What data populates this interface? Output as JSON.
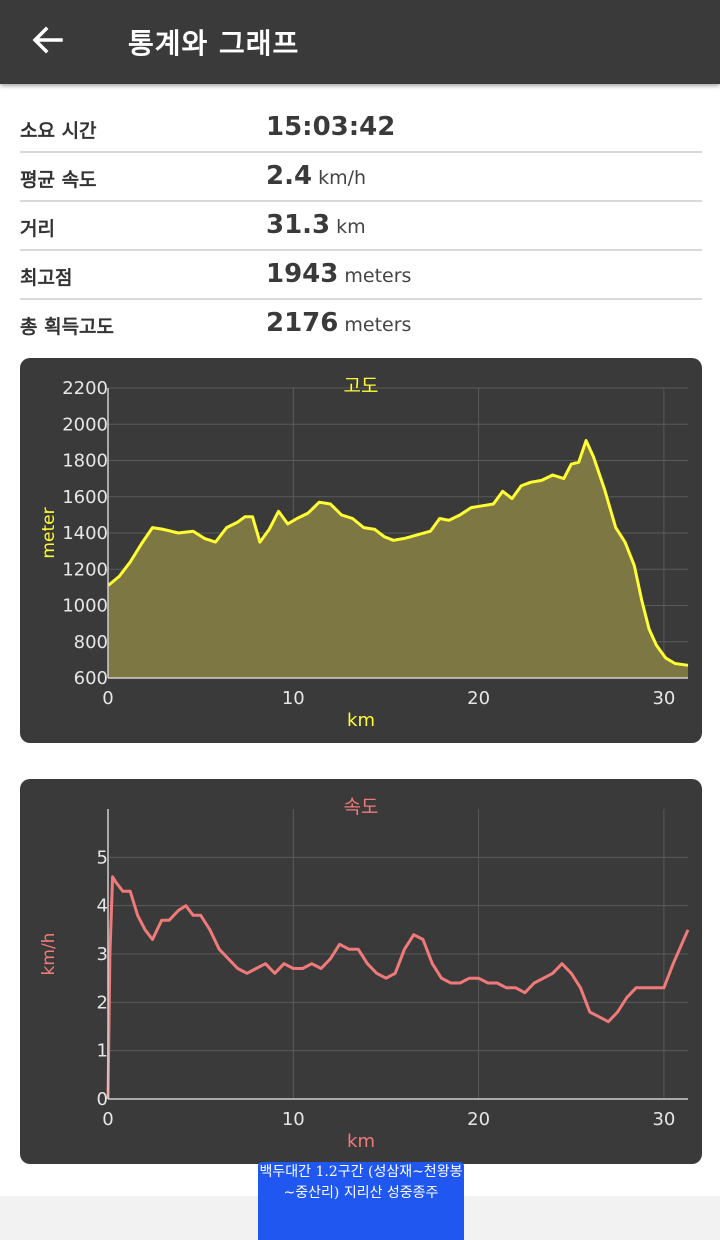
{
  "header": {
    "title": "통계와 그래프",
    "back_icon": "arrow-left-icon"
  },
  "stats": [
    {
      "label": "소요 시간",
      "value": "15:03:42",
      "unit": ""
    },
    {
      "label": "평균 속도",
      "value": "2.4",
      "unit": "km/h"
    },
    {
      "label": "거리",
      "value": "31.3",
      "unit": "km"
    },
    {
      "label": "최고점",
      "value": "1943",
      "unit": "meters"
    },
    {
      "label": "총 획득고도",
      "value": "2176",
      "unit": "meters"
    }
  ],
  "chart_data": [
    {
      "type": "area",
      "title": "고도",
      "xlabel": "km",
      "ylabel": "meter",
      "xlim": [
        0,
        31.3
      ],
      "ylim": [
        600,
        2200
      ],
      "xticks": [
        "0",
        "10",
        "20",
        "30"
      ],
      "yticks": [
        "600",
        "800",
        "1000",
        "1200",
        "1400",
        "1600",
        "1800",
        "2000",
        "2200"
      ],
      "grid": true,
      "color": "#ffff33",
      "fill": "#7d7843",
      "x": [
        0,
        0.6,
        1.2,
        1.8,
        2.4,
        3.0,
        3.8,
        4.6,
        5.2,
        5.8,
        6.4,
        7.0,
        7.4,
        7.8,
        8.2,
        8.7,
        9.2,
        9.7,
        10.2,
        10.8,
        11.4,
        12.0,
        12.6,
        13.2,
        13.8,
        14.4,
        14.9,
        15.4,
        16.0,
        16.7,
        17.4,
        17.9,
        18.4,
        19.0,
        19.6,
        20.2,
        20.8,
        21.3,
        21.8,
        22.3,
        22.8,
        23.4,
        24.0,
        24.6,
        25.0,
        25.4,
        25.8,
        26.2,
        26.8,
        27.4,
        27.9,
        28.4,
        28.8,
        29.2,
        29.6,
        30.1,
        30.6,
        31.3
      ],
      "y": [
        1110,
        1160,
        1240,
        1340,
        1430,
        1420,
        1400,
        1410,
        1370,
        1350,
        1430,
        1460,
        1490,
        1490,
        1350,
        1420,
        1520,
        1450,
        1480,
        1510,
        1570,
        1560,
        1500,
        1480,
        1430,
        1420,
        1380,
        1360,
        1370,
        1390,
        1410,
        1480,
        1470,
        1500,
        1540,
        1550,
        1560,
        1630,
        1590,
        1660,
        1680,
        1690,
        1720,
        1700,
        1780,
        1790,
        1910,
        1820,
        1640,
        1430,
        1350,
        1220,
        1030,
        870,
        780,
        710,
        680,
        670
      ]
    },
    {
      "type": "line",
      "title": "속도",
      "xlabel": "km",
      "ylabel": "km/h",
      "xlim": [
        0,
        31.3
      ],
      "ylim": [
        0,
        6
      ],
      "xticks": [
        "0",
        "10",
        "20",
        "30"
      ],
      "yticks": [
        "0",
        "1",
        "2",
        "3",
        "4",
        "5"
      ],
      "grid": true,
      "color": "#f07a7a",
      "x": [
        0,
        0.1,
        0.25,
        0.4,
        0.8,
        1.2,
        1.6,
        2.0,
        2.4,
        2.9,
        3.3,
        3.8,
        4.2,
        4.6,
        5.0,
        5.5,
        6.0,
        6.5,
        7.0,
        7.5,
        8.0,
        8.5,
        9.0,
        9.5,
        10.0,
        10.5,
        11.0,
        11.5,
        12.0,
        12.5,
        13.0,
        13.5,
        14.0,
        14.5,
        15.0,
        15.5,
        16.0,
        16.5,
        17.0,
        17.5,
        18.0,
        18.5,
        19.0,
        19.5,
        20.0,
        20.5,
        21.0,
        21.5,
        22.0,
        22.5,
        23.0,
        23.5,
        24.0,
        24.5,
        25.0,
        25.5,
        26.0,
        26.5,
        27.0,
        27.5,
        28.0,
        28.5,
        29.0,
        29.5,
        30.0,
        30.5,
        31.3
      ],
      "y": [
        0,
        3.0,
        4.6,
        4.5,
        4.3,
        4.3,
        3.8,
        3.5,
        3.3,
        3.7,
        3.7,
        3.9,
        4.0,
        3.8,
        3.8,
        3.5,
        3.1,
        2.9,
        2.7,
        2.6,
        2.7,
        2.8,
        2.6,
        2.8,
        2.7,
        2.7,
        2.8,
        2.7,
        2.9,
        3.2,
        3.1,
        3.1,
        2.8,
        2.6,
        2.5,
        2.6,
        3.1,
        3.4,
        3.3,
        2.8,
        2.5,
        2.4,
        2.4,
        2.5,
        2.5,
        2.4,
        2.4,
        2.3,
        2.3,
        2.2,
        2.4,
        2.5,
        2.6,
        2.8,
        2.6,
        2.3,
        1.8,
        1.7,
        1.6,
        1.8,
        2.1,
        2.3,
        2.3,
        2.3,
        2.3,
        2.8,
        3.5
      ]
    }
  ],
  "ad_banner": {
    "text": "백두대간 1.2구간 (성삼재~천왕봉~중산리) 지리산 성중종주"
  }
}
